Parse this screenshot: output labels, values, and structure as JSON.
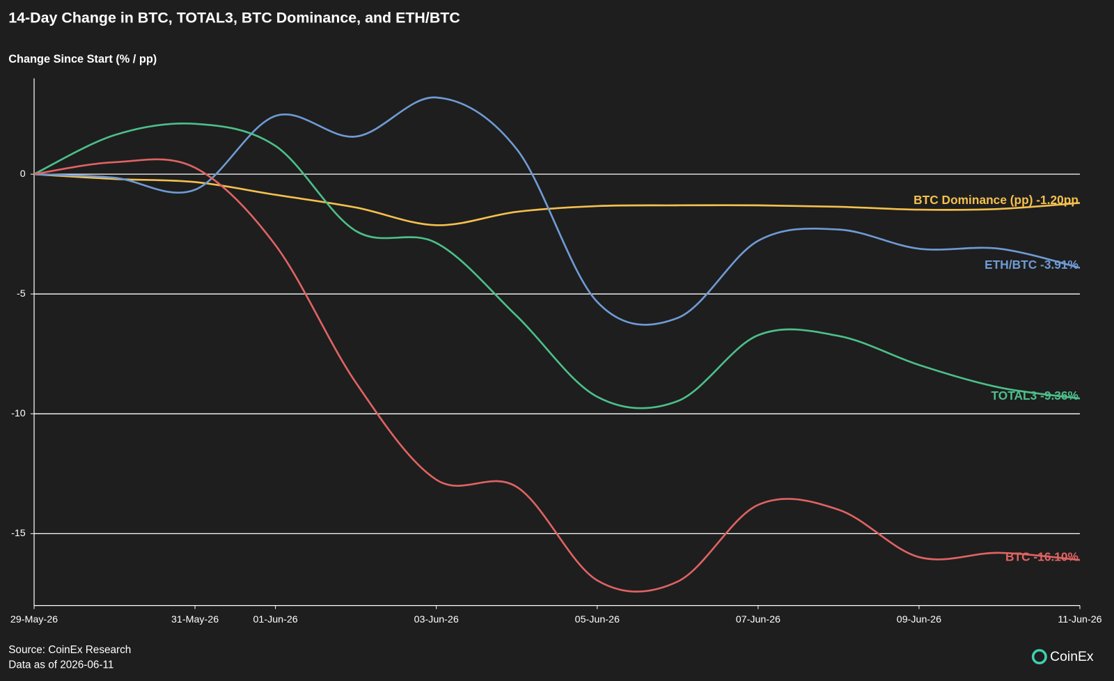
{
  "chart_data": {
    "type": "line",
    "title": "14-Day Change in BTC, TOTAL3, BTC Dominance, and ETH/BTC",
    "y_label": "Change Since Start (% / pp)",
    "source": "Source: CoinEx Research",
    "data_note": "Data as of 2026-06-11",
    "brand": "CoinEx",
    "x": [
      "2026-05-29",
      "2026-05-30",
      "2026-05-31",
      "2026-06-01",
      "2026-06-02",
      "2026-06-03",
      "2026-06-04",
      "2026-06-05",
      "2026-06-06",
      "2026-06-07",
      "2026-06-08",
      "2026-06-09",
      "2026-06-10",
      "2026-06-11"
    ],
    "xlim": [
      "2026-05-29",
      "2026-06-11"
    ],
    "xticks": [
      {
        "value": "2026-05-29",
        "label": "29-May-26"
      },
      {
        "value": "2026-05-31",
        "label": "31-May-26"
      },
      {
        "value": "2026-06-01",
        "label": "01-Jun-26"
      },
      {
        "value": "2026-06-03",
        "label": "03-Jun-26"
      },
      {
        "value": "2026-06-05",
        "label": "05-Jun-26"
      },
      {
        "value": "2026-06-07",
        "label": "07-Jun-26"
      },
      {
        "value": "2026-06-09",
        "label": "09-Jun-26"
      },
      {
        "value": "2026-06-11",
        "label": "11-Jun-26"
      }
    ],
    "ylim": [
      -18,
      4
    ],
    "yticks": [
      0,
      -5,
      -10,
      -15
    ],
    "grid": true,
    "series": [
      {
        "name": "BTC Dominance (pp)",
        "color": "#f4c04e",
        "end_label": "BTC Dominance (pp) -1.20pp",
        "values": [
          0,
          -0.2,
          -0.33,
          -0.86,
          -1.39,
          -2.13,
          -1.57,
          -1.33,
          -1.3,
          -1.3,
          -1.36,
          -1.48,
          -1.45,
          -1.2
        ]
      },
      {
        "name": "ETH/BTC",
        "color": "#6f9bd4",
        "end_label": "ETH/BTC -3.91%",
        "values": [
          0,
          -0.15,
          -0.65,
          2.43,
          1.57,
          3.2,
          1.04,
          -5.33,
          -6.0,
          -2.78,
          -2.31,
          -3.11,
          -3.11,
          -3.91
        ]
      },
      {
        "name": "TOTAL3",
        "color": "#4dbf8a",
        "end_label": "TOTAL3 -9.36%",
        "values": [
          0,
          1.63,
          2.1,
          1.18,
          -2.37,
          -2.87,
          -5.92,
          -9.29,
          -9.47,
          -6.72,
          -6.75,
          -7.96,
          -8.9,
          -9.36
        ]
      },
      {
        "name": "BTC",
        "color": "#e06363",
        "end_label": "BTC -16.10%",
        "values": [
          0,
          0.5,
          0.27,
          -2.96,
          -8.7,
          -12.75,
          -13.05,
          -16.95,
          -17.0,
          -13.8,
          -14.0,
          -15.98,
          -15.8,
          -16.1
        ]
      }
    ]
  }
}
